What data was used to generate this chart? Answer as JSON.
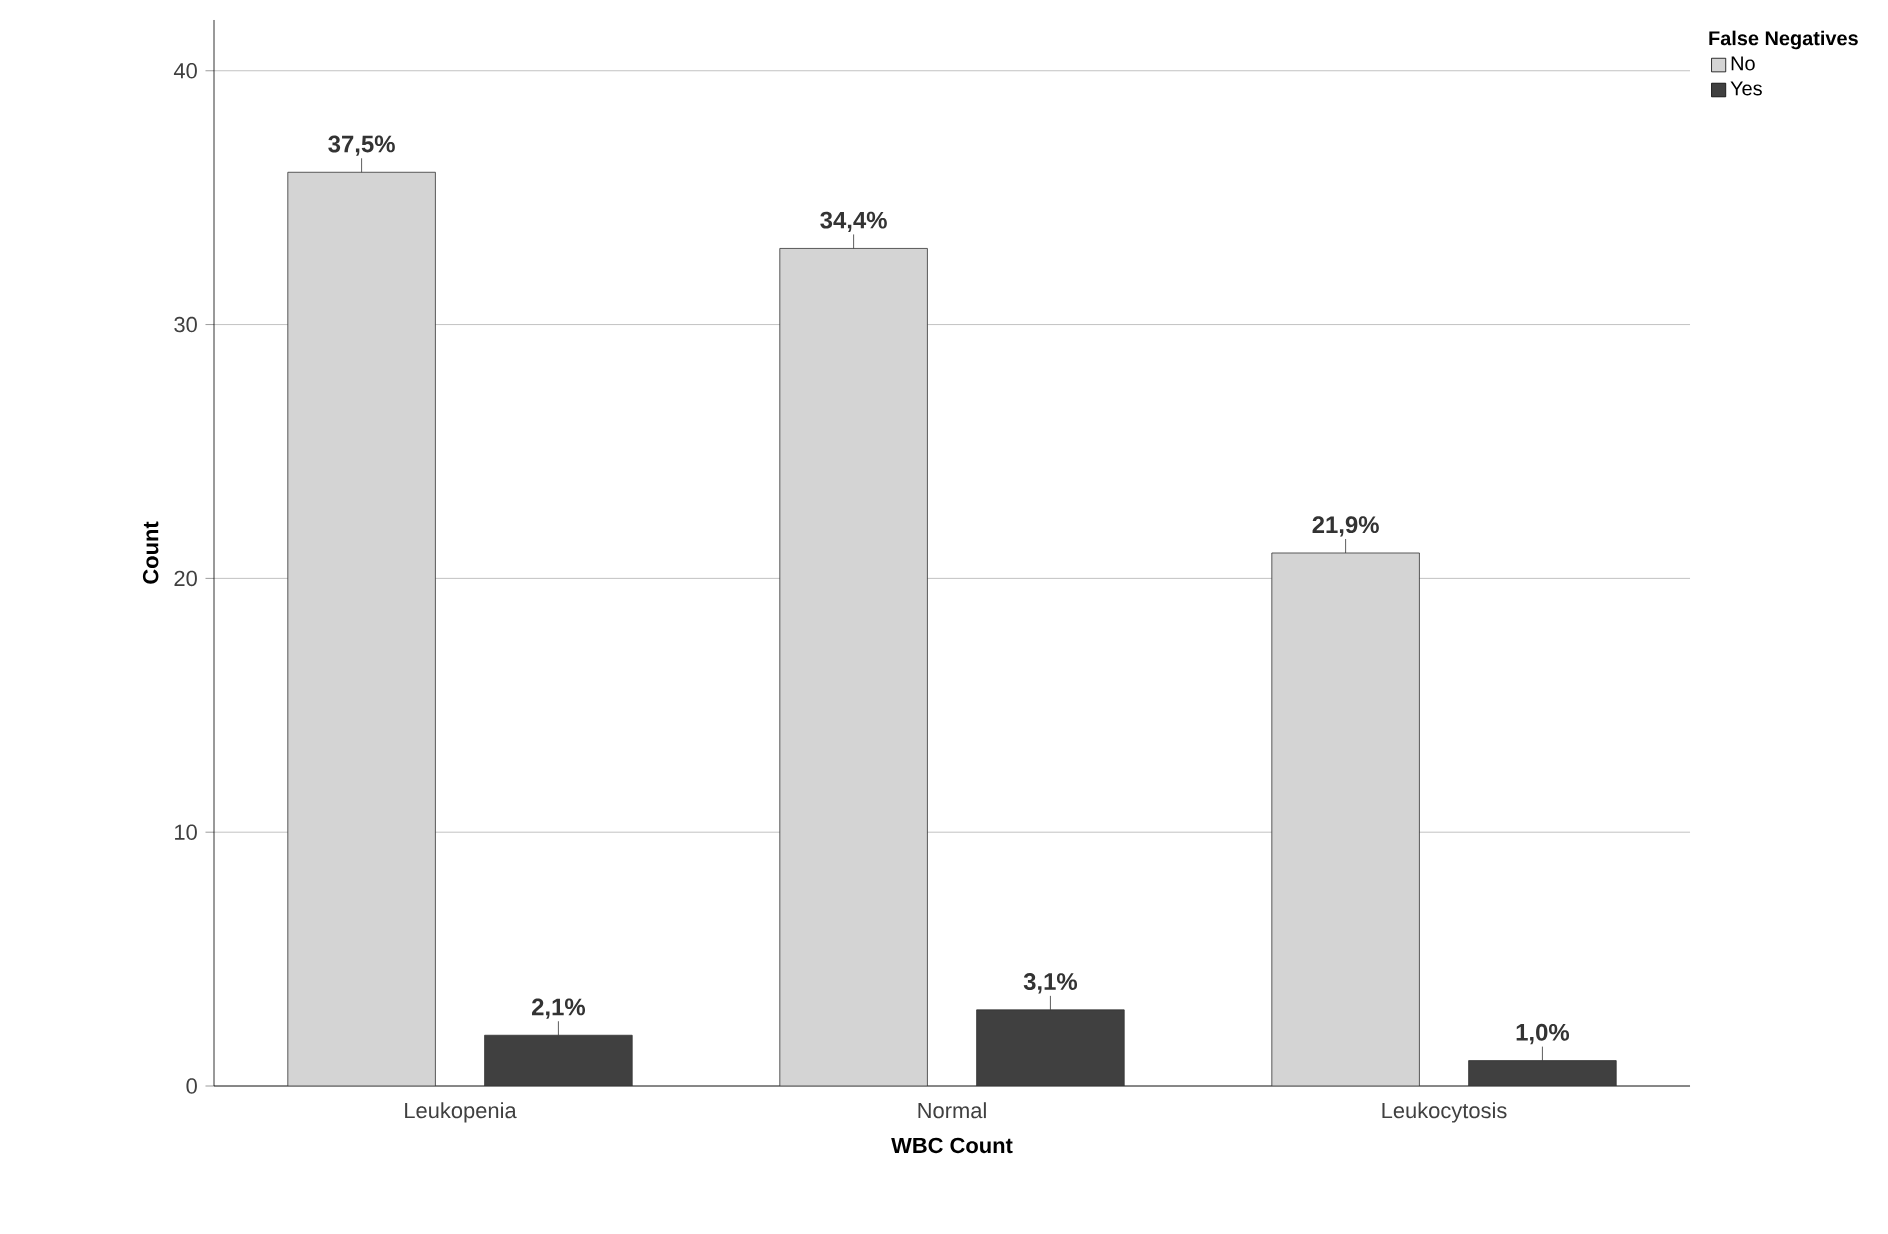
{
  "chart_data": {
    "type": "bar",
    "xlabel": "WBC Count",
    "ylabel": "Count",
    "legend_title": "False Negatives",
    "categories": [
      "Leukopenia",
      "Normal",
      "Leukocytosis"
    ],
    "series": [
      {
        "name": "No",
        "color": "#d4d4d4",
        "values": [
          36,
          33,
          21
        ]
      },
      {
        "name": "Yes",
        "color": "#404040",
        "values": [
          2,
          3,
          1
        ]
      }
    ],
    "annotations": [
      "37,5%",
      "34,4%",
      "21,9%",
      "2,1%",
      "3,1%",
      "1,0%"
    ],
    "ylim": [
      0,
      42
    ],
    "yticks": [
      0,
      10,
      20,
      30,
      40
    ],
    "grid": "y",
    "legend": "top right"
  }
}
